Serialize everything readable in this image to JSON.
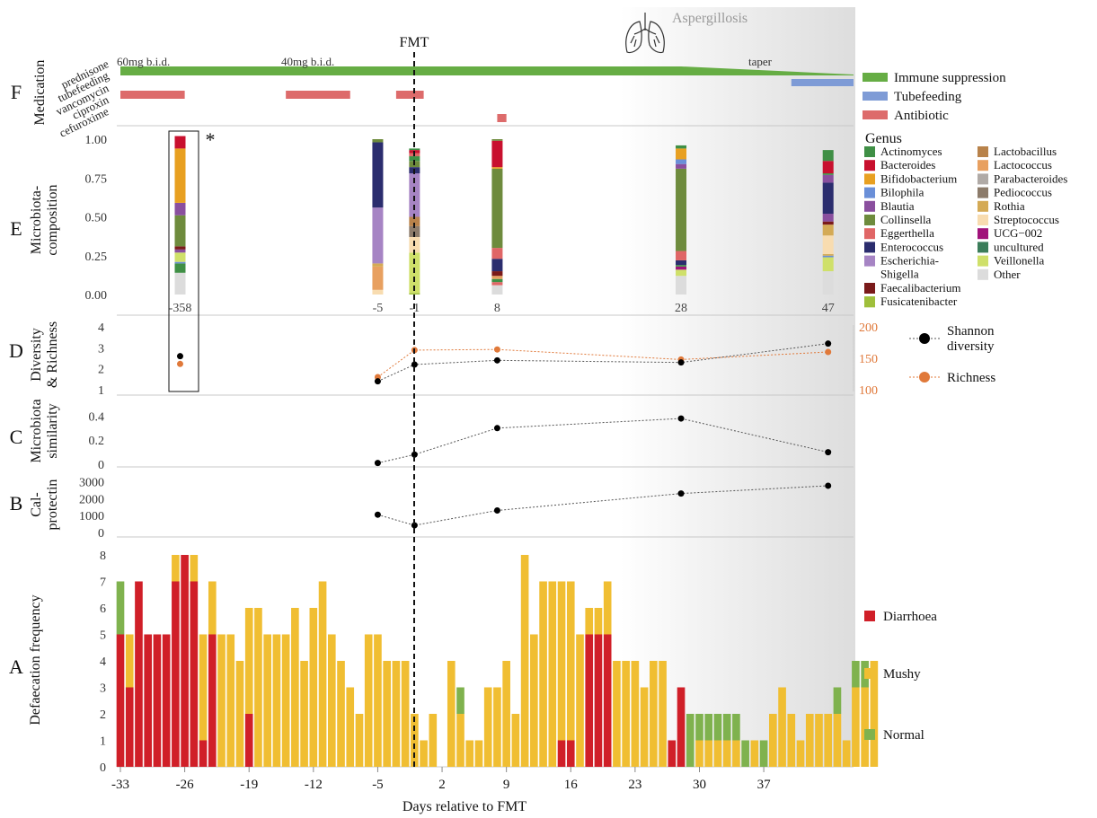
{
  "fmt_label": "FMT",
  "aspergillosis_label": "Aspergillosis",
  "x_axis_label": "Days relative to FMT",
  "panel_letters": [
    "F",
    "E",
    "D",
    "C",
    "B",
    "A"
  ],
  "panel_titles": {
    "F": "Medication",
    "E": [
      "Microbiota-",
      "composition"
    ],
    "D": [
      "Diversity",
      "& Richness"
    ],
    "C": [
      "Microbiota",
      "similarity"
    ],
    "B": [
      "Cal-",
      "protectin"
    ],
    "A": "Defaecation frequency"
  },
  "colors": {
    "diarrhoea": "#d01f28",
    "mushy": "#f0be32",
    "normal": "#7fb24e",
    "immune": "#66ad44",
    "tubefeeding": "#7e9bd6",
    "antibiotic": "#dd6b6b",
    "shannon": "#000000",
    "richness": "#e0793a",
    "aspergillosis_text": "#9a9a9a"
  },
  "medication": {
    "row_labels": [
      "prednisone",
      "tubefeeding",
      "vancomycin",
      "ciproxin",
      "cefuroxime"
    ],
    "dose_labels": [
      "60mg b.i.d.",
      "40mg b.i.d.",
      "taper"
    ],
    "legend": [
      "Immune suppression",
      "Tubefeeding",
      "Antibiotic"
    ],
    "antibiotic_courses": [
      {
        "drug": "vancomycin",
        "start": -33,
        "end": -26
      },
      {
        "drug": "vancomycin",
        "start": -15,
        "end": -8
      },
      {
        "drug": "vancomycin",
        "start": -3,
        "end": 0
      },
      {
        "drug": "cefuroxime",
        "start": 8,
        "end": 9
      }
    ],
    "tubefeeding": {
      "start": 40,
      "end": 50
    },
    "prednisone_taper_from": 28
  },
  "genus_legend": {
    "title": "Genus",
    "items": [
      {
        "name": "Actinomyces",
        "color": "#3f8f45"
      },
      {
        "name": "Bacteroides",
        "color": "#c8102e"
      },
      {
        "name": "Bifidobacterium",
        "color": "#e8a021"
      },
      {
        "name": "Bilophila",
        "color": "#6a8fd8"
      },
      {
        "name": "Blautia",
        "color": "#8a4f9e"
      },
      {
        "name": "Collinsella",
        "color": "#6e8b3d"
      },
      {
        "name": "Eggerthella",
        "color": "#e06666"
      },
      {
        "name": "Enterococcus",
        "color": "#2b2d6e"
      },
      {
        "name": "Escherichia-Shigella",
        "color": "#a684c4"
      },
      {
        "name": "Faecalibacterium",
        "color": "#7a1a1a"
      },
      {
        "name": "Fusicatenibacter",
        "color": "#9fbf3b"
      },
      {
        "name": "Lactobacillus",
        "color": "#b8824a"
      },
      {
        "name": "Lactococcus",
        "color": "#e8a060"
      },
      {
        "name": "Parabacteroides",
        "color": "#b0aaa6"
      },
      {
        "name": "Pediococcus",
        "color": "#8c7b6a"
      },
      {
        "name": "Rothia",
        "color": "#d4aa55"
      },
      {
        "name": "Streptococcus",
        "color": "#f8dcb0"
      },
      {
        "name": "UCG−002",
        "color": "#a0127a"
      },
      {
        "name": "uncultured",
        "color": "#3b7d5a"
      },
      {
        "name": "Veillonella",
        "color": "#cfe06a"
      },
      {
        "name": "Other",
        "color": "#dcdcdc"
      }
    ]
  },
  "defecation_legend": [
    "Diarrhoea",
    "Mushy",
    "Normal"
  ],
  "diversity_legend": [
    "Shannon diversity",
    "Richness"
  ],
  "asterisk": "*",
  "chart_data": [
    {
      "type": "bar",
      "panel": "E",
      "stacked": true,
      "ylabel": "Microbiota-composition",
      "ylim": [
        0,
        1
      ],
      "yticks": [
        "0.00",
        "0.25",
        "0.50",
        "0.75",
        "1.00"
      ],
      "samples": [
        {
          "label": "-358",
          "day": -26.5,
          "segments": [
            [
              "Other",
              0.14
            ],
            [
              "Actinomyces",
              0.06
            ],
            [
              "Bilophila",
              0.01
            ],
            [
              "Veillonella",
              0.06
            ],
            [
              "Blautia",
              0.02
            ],
            [
              "Faecalibacterium",
              0.02
            ],
            [
              "Collinsella",
              0.2
            ],
            [
              "Blautia",
              0.08
            ],
            [
              "Bifidobacterium",
              0.35
            ],
            [
              "Bacteroides",
              0.08
            ]
          ]
        },
        {
          "label": "-5",
          "day": -5,
          "segments": [
            [
              "Streptococcus",
              0.03
            ],
            [
              "Lactococcus",
              0.15
            ],
            [
              "Rothia",
              0.02
            ],
            [
              "Escherichia-Shigella",
              0.36
            ],
            [
              "Enterococcus",
              0.42
            ],
            [
              "Collinsella",
              0.02
            ]
          ]
        },
        {
          "label": "-1",
          "day": -1,
          "segments": [
            [
              "Fusicatenibacter",
              0.01
            ],
            [
              "Veillonella",
              0.26
            ],
            [
              "Streptococcus",
              0.1
            ],
            [
              "Pediococcus",
              0.07
            ],
            [
              "Lactobacillus",
              0.06
            ],
            [
              "Escherichia-Shigella",
              0.28
            ],
            [
              "Enterococcus",
              0.04
            ],
            [
              "Collinsella",
              0.04
            ],
            [
              "Actinomyces",
              0.03
            ],
            [
              "Eggerthella",
              0.02
            ],
            [
              "Bacteroides",
              0.02
            ],
            [
              "Actinomyces",
              0.01
            ]
          ]
        },
        {
          "label": "8",
          "day": 8,
          "segments": [
            [
              "Other",
              0.06
            ],
            [
              "Eggerthella",
              0.02
            ],
            [
              "Actinomyces",
              0.02
            ],
            [
              "Lactococcus",
              0.02
            ],
            [
              "Faecalibacterium",
              0.03
            ],
            [
              "Enterococcus",
              0.08
            ],
            [
              "Eggerthella",
              0.07
            ],
            [
              "Collinsella",
              0.51
            ],
            [
              "Bifidobacterium",
              0.01
            ],
            [
              "Bacteroides",
              0.17
            ],
            [
              "Collinsella",
              0.01
            ]
          ]
        },
        {
          "label": "28",
          "day": 28,
          "segments": [
            [
              "Other",
              0.12
            ],
            [
              "Veillonella",
              0.04
            ],
            [
              "UCG−002",
              0.02
            ],
            [
              "Actinomyces",
              0.01
            ],
            [
              "Enterococcus",
              0.03
            ],
            [
              "Eggerthella",
              0.06
            ],
            [
              "Collinsella",
              0.53
            ],
            [
              "Blautia",
              0.03
            ],
            [
              "Bilophila",
              0.03
            ],
            [
              "Bifidobacterium",
              0.07
            ],
            [
              "Actinomyces",
              0.02
            ]
          ]
        },
        {
          "label": "47",
          "day": 44,
          "segments": [
            [
              "Other",
              0.15
            ],
            [
              "Veillonella",
              0.09
            ],
            [
              "Bilophila",
              0.01
            ],
            [
              "Rothia",
              0.01
            ],
            [
              "Streptococcus",
              0.12
            ],
            [
              "Rothia",
              0.07
            ],
            [
              "Faecalibacterium",
              0.02
            ],
            [
              "Blautia",
              0.05
            ],
            [
              "Enterococcus",
              0.2
            ],
            [
              "Blautia",
              0.05
            ],
            [
              "Actinomyces",
              0.01
            ],
            [
              "Bacteroides",
              0.08
            ],
            [
              "Actinomyces",
              0.07
            ]
          ]
        }
      ]
    },
    {
      "type": "line",
      "panel": "D",
      "ylabel": "Diversity & Richness",
      "ylim": [
        1,
        4
      ],
      "yticks": [
        1,
        2,
        3,
        4
      ],
      "y2lim": [
        100,
        200
      ],
      "y2ticks": [
        100,
        150,
        200
      ],
      "series": [
        {
          "name": "Shannon diversity",
          "points": [
            [
              -26.5,
              2.6
            ],
            [
              -5,
              1.4
            ],
            [
              -1,
              2.2
            ],
            [
              8,
              2.4
            ],
            [
              28,
              2.3
            ],
            [
              44,
              3.2
            ]
          ]
        },
        {
          "name": "Richness",
          "axis": "right",
          "points": [
            [
              -26.5,
              141
            ],
            [
              -5,
              120
            ],
            [
              -1,
              163
            ],
            [
              8,
              164
            ],
            [
              28,
              148
            ],
            [
              44,
              160
            ]
          ]
        }
      ]
    },
    {
      "type": "line",
      "panel": "C",
      "ylabel": "Microbiota similarity",
      "ylim": [
        0,
        0.5
      ],
      "yticks": [
        "0",
        "0.2",
        "0.4"
      ],
      "series": [
        {
          "points": [
            [
              -5,
              0.01
            ],
            [
              -1,
              0.08
            ],
            [
              8,
              0.3
            ],
            [
              28,
              0.38
            ],
            [
              44,
              0.1
            ]
          ]
        }
      ]
    },
    {
      "type": "line",
      "panel": "B",
      "ylabel": "Cal-protectin",
      "ylim": [
        0,
        3500
      ],
      "yticks": [
        "0",
        "1000",
        "2000",
        "3000"
      ],
      "series": [
        {
          "points": [
            [
              -5,
              1050
            ],
            [
              -1,
              420
            ],
            [
              8,
              1300
            ],
            [
              28,
              2300
            ],
            [
              44,
              2760
            ]
          ]
        }
      ]
    },
    {
      "type": "bar",
      "panel": "A",
      "stacked": true,
      "xlabel": "Days relative to FMT",
      "ylabel": "Defaecation frequency",
      "ylim": [
        0,
        8
      ],
      "yticks": [
        "0",
        "1",
        "2",
        "3",
        "4",
        "5",
        "6",
        "7",
        "8"
      ],
      "xticks": [
        "-33",
        "-26",
        "-19",
        "-12",
        "-5",
        "2",
        "9",
        "16",
        "23",
        "30",
        "37"
      ],
      "start_day": -33,
      "series_names": [
        "Diarrhoea",
        "Mushy",
        "Normal"
      ],
      "days": [
        [
          5,
          0,
          2
        ],
        [
          3,
          2,
          0
        ],
        [
          7,
          0,
          0
        ],
        [
          5,
          0,
          0
        ],
        [
          5,
          0,
          0
        ],
        [
          5,
          0,
          0
        ],
        [
          7,
          1,
          0
        ],
        [
          8,
          0,
          0
        ],
        [
          7,
          1,
          0
        ],
        [
          1,
          4,
          0
        ],
        [
          5,
          2,
          0
        ],
        [
          0,
          5,
          0
        ],
        [
          0,
          5,
          0
        ],
        [
          0,
          4,
          0
        ],
        [
          2,
          4,
          0
        ],
        [
          0,
          6,
          0
        ],
        [
          0,
          5,
          0
        ],
        [
          0,
          5,
          0
        ],
        [
          0,
          5,
          0
        ],
        [
          0,
          6,
          0
        ],
        [
          0,
          4,
          0
        ],
        [
          0,
          6,
          0
        ],
        [
          0,
          7,
          0
        ],
        [
          0,
          5,
          0
        ],
        [
          0,
          4,
          0
        ],
        [
          0,
          3,
          0
        ],
        [
          0,
          2,
          0
        ],
        [
          0,
          5,
          0
        ],
        [
          0,
          5,
          0
        ],
        [
          0,
          4,
          0
        ],
        [
          0,
          4,
          0
        ],
        [
          0,
          4,
          0
        ],
        [
          0,
          2,
          0
        ],
        [
          0,
          1,
          0
        ],
        [
          0,
          2,
          0
        ],
        [
          0,
          0,
          0
        ],
        [
          0,
          4,
          0
        ],
        [
          0,
          2,
          1
        ],
        [
          0,
          1,
          0
        ],
        [
          0,
          1,
          0
        ],
        [
          0,
          3,
          0
        ],
        [
          0,
          3,
          0
        ],
        [
          0,
          4,
          0
        ],
        [
          0,
          2,
          0
        ],
        [
          0,
          8,
          0
        ],
        [
          0,
          5,
          0
        ],
        [
          0,
          7,
          0
        ],
        [
          0,
          7,
          0
        ],
        [
          1,
          6,
          0
        ],
        [
          1,
          6,
          0
        ],
        [
          0,
          5,
          0
        ],
        [
          5,
          1,
          0
        ],
        [
          5,
          1,
          0
        ],
        [
          5,
          2,
          0
        ],
        [
          0,
          4,
          0
        ],
        [
          0,
          4,
          0
        ],
        [
          0,
          4,
          0
        ],
        [
          0,
          3,
          0
        ],
        [
          0,
          4,
          0
        ],
        [
          0,
          4,
          0
        ],
        [
          1,
          0,
          0
        ],
        [
          3,
          0,
          0
        ],
        [
          0,
          0,
          2
        ],
        [
          0,
          1,
          1
        ],
        [
          0,
          1,
          1
        ],
        [
          0,
          1,
          1
        ],
        [
          0,
          1,
          1
        ],
        [
          0,
          1,
          1
        ],
        [
          0,
          0,
          1
        ],
        [
          0,
          1,
          0
        ],
        [
          0,
          0,
          1
        ],
        [
          0,
          2,
          0
        ],
        [
          0,
          3,
          0
        ],
        [
          0,
          2,
          0
        ],
        [
          0,
          1,
          0
        ],
        [
          0,
          2,
          0
        ],
        [
          0,
          2,
          0
        ],
        [
          0,
          2,
          0
        ],
        [
          0,
          2,
          1
        ],
        [
          0,
          1,
          0
        ],
        [
          0,
          3,
          1
        ],
        [
          0,
          3,
          1
        ],
        [
          0,
          4,
          0
        ]
      ]
    }
  ]
}
